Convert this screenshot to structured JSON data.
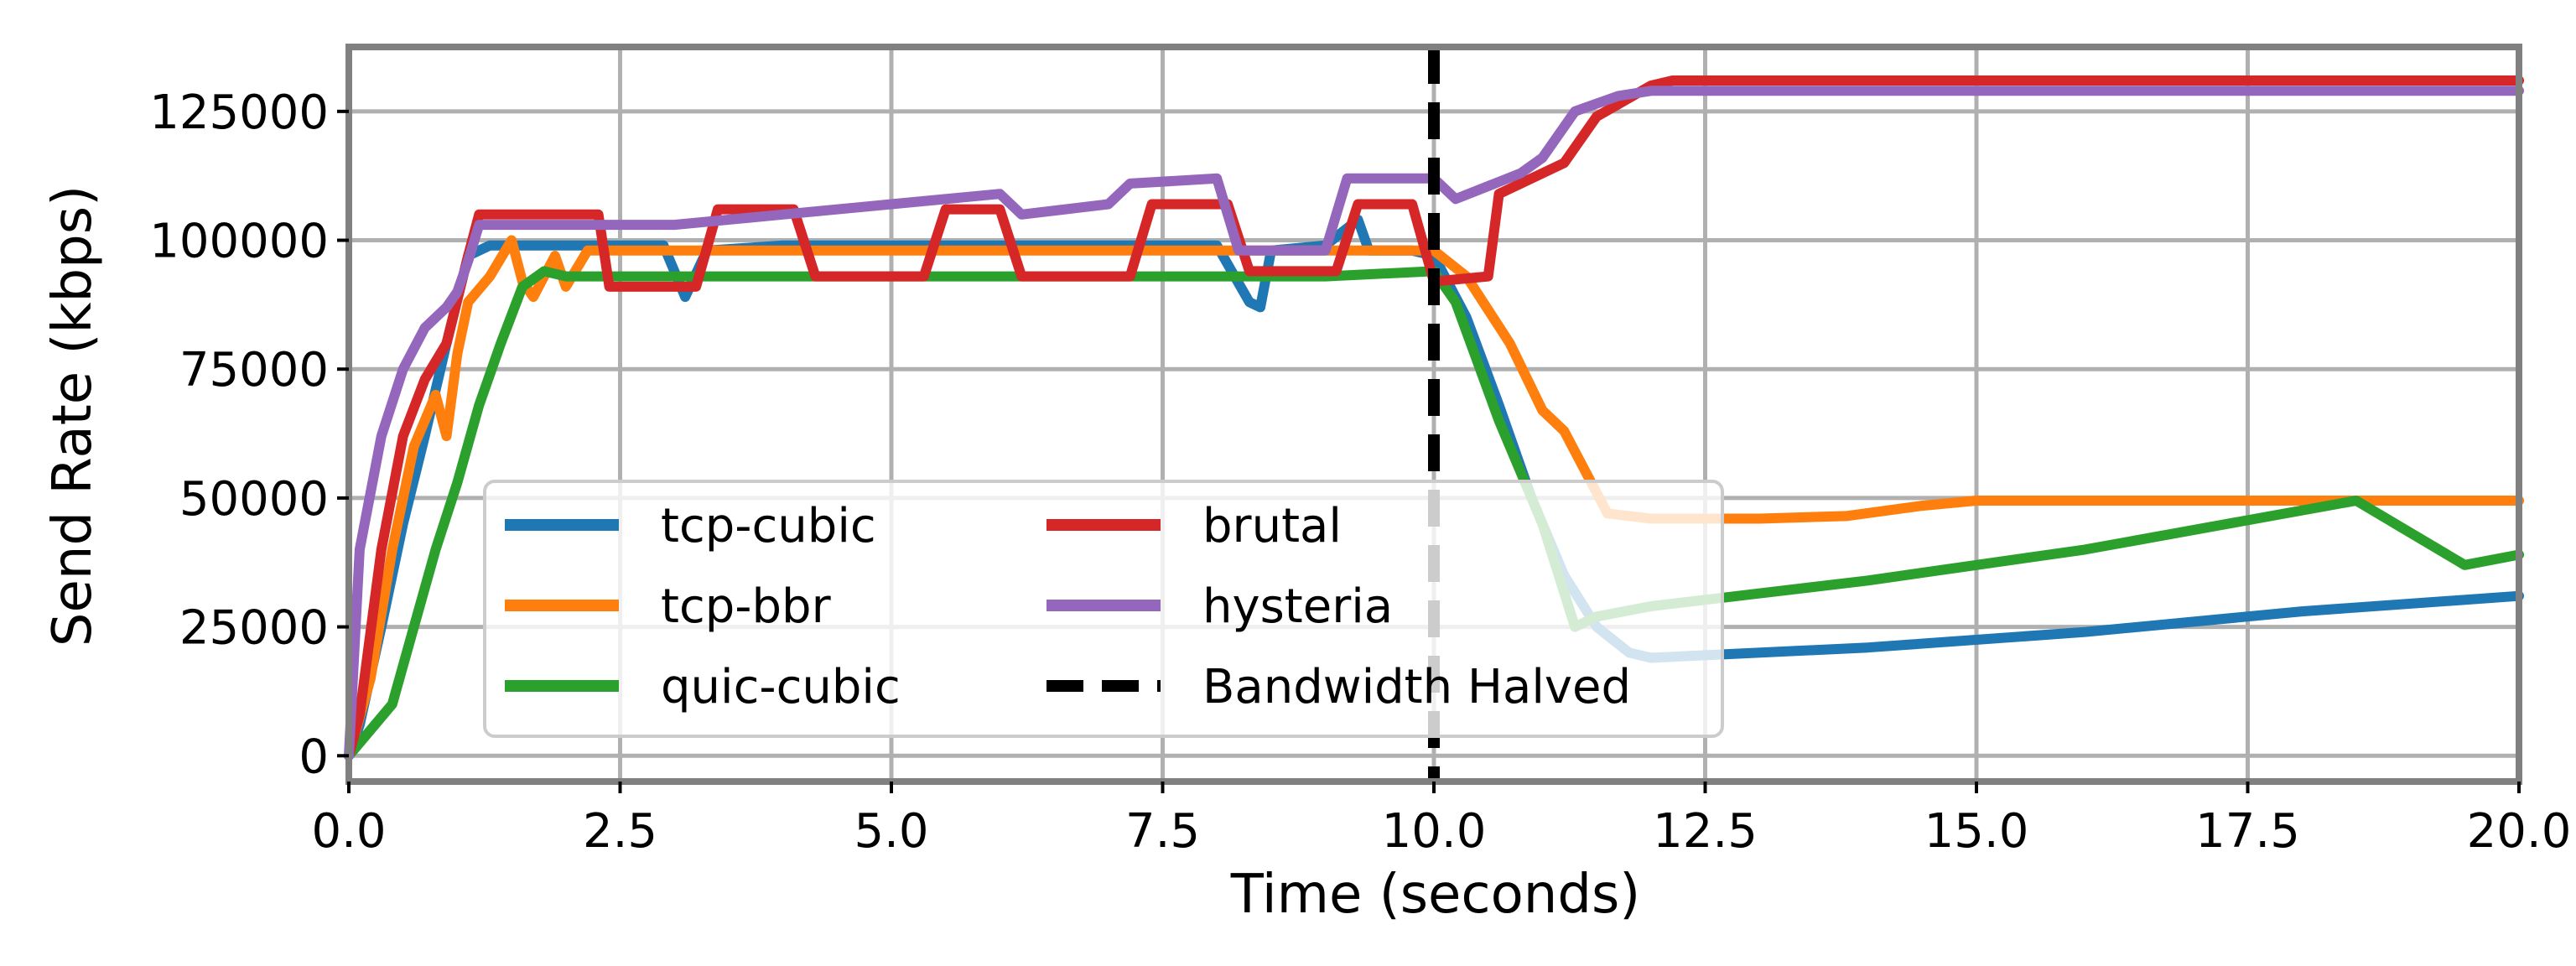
{
  "chart_data": {
    "type": "line",
    "title": "",
    "xlabel": "Time (seconds)",
    "ylabel": "Send Rate (kbps)",
    "xlim": [
      0,
      20
    ],
    "ylim": [
      -5000,
      137500
    ],
    "xticks": [
      0.0,
      2.5,
      5.0,
      7.5,
      10.0,
      12.5,
      15.0,
      17.5,
      20.0
    ],
    "xtick_labels": [
      "0.0",
      "2.5",
      "5.0",
      "7.5",
      "10.0",
      "12.5",
      "15.0",
      "17.5",
      "20.0"
    ],
    "yticks": [
      0,
      25000,
      50000,
      75000,
      100000,
      125000
    ],
    "ytick_labels": [
      "0",
      "25000",
      "50000",
      "75000",
      "100000",
      "125000"
    ],
    "grid": true,
    "legend_position": "lower-left",
    "legend_columns": 2,
    "series": [
      {
        "name": "tcp-cubic",
        "color": "#1f77b4",
        "x": [
          0,
          0.1,
          0.3,
          0.5,
          0.7,
          0.9,
          1.1,
          1.3,
          1.6,
          2.0,
          2.5,
          2.9,
          3.1,
          3.3,
          4.0,
          5.0,
          6.0,
          7.0,
          8.0,
          8.3,
          8.4,
          8.5,
          9.0,
          9.3,
          9.4,
          9.5,
          9.8,
          10.0,
          10.3,
          10.6,
          10.9,
          11.2,
          11.5,
          11.8,
          12.0,
          12.5,
          14.0,
          16.0,
          18.0,
          20.0
        ],
        "y": [
          0,
          6000,
          25000,
          45000,
          62000,
          80000,
          97000,
          99000,
          99000,
          99000,
          99000,
          99000,
          89000,
          98000,
          99000,
          99000,
          99000,
          99000,
          99000,
          88000,
          87000,
          98000,
          99000,
          104000,
          98000,
          98000,
          98000,
          97000,
          85000,
          68000,
          50000,
          35000,
          25000,
          20000,
          19000,
          19500,
          21000,
          24000,
          28000,
          31000
        ]
      },
      {
        "name": "tcp-bbr",
        "color": "#ff7f0e",
        "x": [
          0,
          0.2,
          0.4,
          0.6,
          0.8,
          0.9,
          1.0,
          1.1,
          1.3,
          1.5,
          1.6,
          1.7,
          1.9,
          2.0,
          2.2,
          3.0,
          5.0,
          8.0,
          9.5,
          10.0,
          10.3,
          10.7,
          11.0,
          11.2,
          11.6,
          12.0,
          13.0,
          13.8,
          14.5,
          15.0,
          16.0,
          17.0,
          18.0,
          19.0,
          20.0
        ],
        "y": [
          0,
          15000,
          40000,
          60000,
          70000,
          62000,
          78000,
          88000,
          93000,
          100000,
          92000,
          89000,
          97000,
          91000,
          98000,
          98000,
          98000,
          98000,
          98000,
          98000,
          93000,
          80000,
          67000,
          63000,
          47000,
          46000,
          46000,
          46500,
          48500,
          49500,
          49500,
          49500,
          49500,
          49500,
          49500
        ]
      },
      {
        "name": "quic-cubic",
        "color": "#2ca02c",
        "x": [
          0,
          0.2,
          0.4,
          0.6,
          0.8,
          1.0,
          1.2,
          1.4,
          1.6,
          1.8,
          2.0,
          3.0,
          5.0,
          7.0,
          9.0,
          10.0,
          10.2,
          10.6,
          11.0,
          11.3,
          11.5,
          12.0,
          14.0,
          16.0,
          18.5,
          19.5,
          20.0
        ],
        "y": [
          0,
          5000,
          10000,
          25000,
          40000,
          53000,
          68000,
          80000,
          91000,
          94000,
          93000,
          93000,
          93000,
          93000,
          93000,
          94000,
          88000,
          65000,
          45000,
          25000,
          27000,
          29000,
          34000,
          40000,
          49500,
          37000,
          39000
        ]
      },
      {
        "name": "brutal",
        "color": "#d62728",
        "x": [
          0,
          0.1,
          0.3,
          0.5,
          0.7,
          0.9,
          1.1,
          1.2,
          2.3,
          2.4,
          3.2,
          3.4,
          4.1,
          4.3,
          5.3,
          5.5,
          6.0,
          6.2,
          7.2,
          7.4,
          8.1,
          8.3,
          9.1,
          9.3,
          9.8,
          10.0,
          10.5,
          10.6,
          10.8,
          11.2,
          11.5,
          12.0,
          12.2,
          20.0
        ],
        "y": [
          0,
          8000,
          40000,
          62000,
          73000,
          80000,
          97000,
          105000,
          105000,
          91000,
          91000,
          106000,
          106000,
          93000,
          93000,
          106000,
          106000,
          93000,
          93000,
          107000,
          107000,
          94000,
          94000,
          107000,
          107000,
          92000,
          93000,
          109000,
          111000,
          115000,
          124000,
          130000,
          131000,
          131000
        ]
      },
      {
        "name": "hysteria",
        "color": "#9467bd",
        "x": [
          0,
          0.1,
          0.3,
          0.5,
          0.7,
          0.9,
          1.0,
          1.1,
          1.2,
          2.5,
          3.0,
          4.0,
          5.0,
          6.0,
          6.2,
          7.0,
          7.2,
          8.0,
          8.2,
          9.0,
          9.2,
          9.8,
          10.0,
          10.2,
          10.8,
          11.0,
          11.3,
          11.7,
          12.0,
          20.0
        ],
        "y": [
          0,
          40000,
          62000,
          75000,
          83000,
          87000,
          90000,
          96000,
          103000,
          103000,
          103000,
          105000,
          107000,
          109000,
          105000,
          107000,
          111000,
          112000,
          98000,
          98000,
          112000,
          112000,
          112000,
          108000,
          113000,
          116000,
          125000,
          128000,
          129000,
          129000
        ]
      }
    ],
    "annotations": [
      {
        "type": "vline",
        "x": 10.0,
        "style": "dashed",
        "color": "#000000",
        "name": "Bandwidth Halved"
      }
    ]
  },
  "legend": {
    "col1": [
      "tcp-cubic",
      "tcp-bbr",
      "quic-cubic"
    ],
    "col2": [
      "brutal",
      "hysteria",
      "Bandwidth Halved"
    ]
  }
}
